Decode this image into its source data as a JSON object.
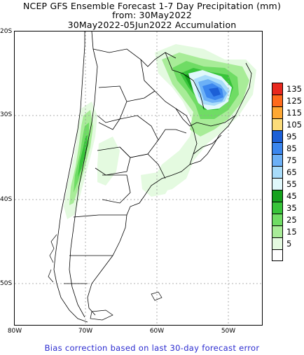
{
  "titles": {
    "line1": "NCEP GFS Ensemble Forecast 1-7 Day Precipitation (mm)",
    "line2": "from: 30May2022",
    "line3": "30May2022-05Jun2022 Accumulation"
  },
  "axes": {
    "lat_labels": [
      "20S",
      "30S",
      "40S",
      "50S"
    ],
    "lon_labels": [
      "80W",
      "70W",
      "60W",
      "50W"
    ]
  },
  "legend": {
    "items": [
      {
        "label": "135",
        "color": "#e8281e"
      },
      {
        "label": "125",
        "color": "#ff6a1c"
      },
      {
        "label": "115",
        "color": "#ffa833"
      },
      {
        "label": "105",
        "color": "#fcdc7a"
      },
      {
        "label": "95",
        "color": "#1c5fd6"
      },
      {
        "label": "85",
        "color": "#3b86ee"
      },
      {
        "label": "75",
        "color": "#6cb0f6"
      },
      {
        "label": "65",
        "color": "#a8dcfa"
      },
      {
        "label": "55",
        "color": "#e0f8fb"
      },
      {
        "label": "45",
        "color": "#16a21e"
      },
      {
        "label": "35",
        "color": "#38c43a"
      },
      {
        "label": "25",
        "color": "#6fdc64"
      },
      {
        "label": "15",
        "color": "#a8ec98"
      },
      {
        "label": "5",
        "color": "#e4fae0"
      },
      {
        "label": "",
        "color": "#ffffff"
      }
    ]
  },
  "footer": "Bias correction based on last 30-day forecast error"
}
